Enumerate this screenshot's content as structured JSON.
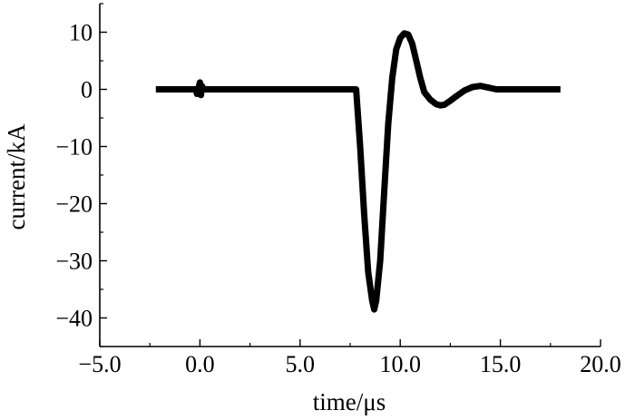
{
  "chart_data": {
    "type": "line",
    "title": "",
    "xlabel": "time/μs",
    "ylabel": "current/kA",
    "xlim": [
      -5,
      20
    ],
    "ylim": [
      -45,
      15
    ],
    "grid": false,
    "x_ticks": [
      -5,
      0,
      5,
      10,
      15,
      20
    ],
    "x_tick_labels": [
      "−5.0",
      "0.0",
      "5.0",
      "10.0",
      "15.0",
      "20.0"
    ],
    "y_ticks": [
      -40,
      -30,
      -20,
      -10,
      0,
      10
    ],
    "y_tick_labels": [
      "−40",
      "−30",
      "−20",
      "−10",
      "0",
      "10"
    ],
    "line_color": "#000000",
    "series": [
      {
        "x": [
          -2.2,
          -0.2,
          -0.15,
          0.0,
          0.05,
          0.1,
          0.2,
          7.8,
          8.0,
          8.2,
          8.4,
          8.6,
          8.7,
          8.8,
          9.0,
          9.2,
          9.4,
          9.6,
          9.8,
          10.0,
          10.2,
          10.4,
          10.6,
          10.8,
          11.0,
          11.2,
          11.5,
          11.8,
          12.0,
          12.2,
          12.5,
          12.8,
          13.2,
          13.6,
          14.0,
          14.4,
          14.8,
          15.2,
          16.0,
          17.0,
          18.0
        ],
        "y": [
          0,
          0,
          -0.8,
          1.2,
          -1.0,
          0.6,
          0,
          0,
          -10,
          -22,
          -32,
          -37,
          -38.5,
          -37,
          -30,
          -18,
          -6,
          2,
          7,
          9,
          9.8,
          9.6,
          8,
          5,
          2,
          -0.5,
          -1.8,
          -2.6,
          -2.8,
          -2.7,
          -2.0,
          -1.2,
          -0.2,
          0.4,
          0.6,
          0.3,
          0,
          0,
          0,
          0,
          0
        ]
      }
    ]
  }
}
